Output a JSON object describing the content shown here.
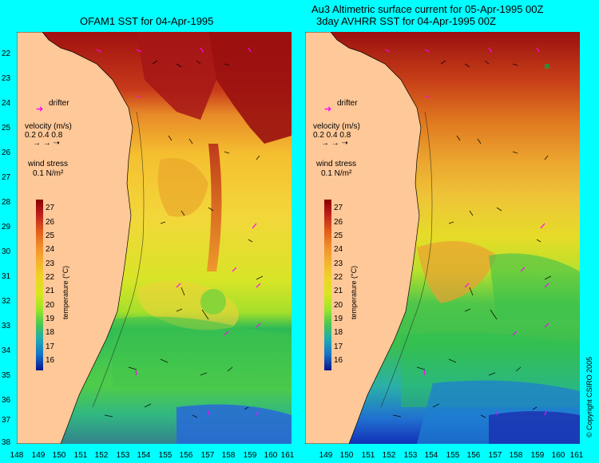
{
  "left_panel": {
    "title": "OFAM1 SST for 04-Apr-1995",
    "legend": {
      "drifter": "drifter",
      "velocity_label": "velocity (m/s)",
      "velocity_values": "0.2 0.4 0.8",
      "wind_label": "wind stress",
      "wind_value": "0.1 N/m²"
    }
  },
  "right_panel": {
    "title_line1": "Au3 Altimetric surface current for 05-Apr-1995 00Z",
    "title_line2": "3day AVHRR SST for 04-Apr-1995 00Z",
    "legend": {
      "drifter": "drifter",
      "velocity_label": "velocity (m/s)",
      "velocity_values": "0.2 0.4 0.8",
      "wind_label": "wind stress",
      "wind_value": "0.1 N/m²"
    }
  },
  "colorbar": {
    "title": "temperature (°C)",
    "ticks": [
      "27",
      "26",
      "25",
      "24",
      "23",
      "22",
      "21",
      "20",
      "19",
      "18",
      "17",
      "16"
    ]
  },
  "latitude_ticks": [
    "22",
    "23",
    "24",
    "25",
    "26",
    "27",
    "28",
    "29",
    "30",
    "31",
    "32",
    "33",
    "34",
    "35",
    "36",
    "37",
    "38"
  ],
  "left_longitude_ticks": [
    "148",
    "149",
    "150",
    "151",
    "152",
    "153",
    "154",
    "155",
    "156",
    "157",
    "158",
    "159",
    "160",
    "161"
  ],
  "right_longitude_ticks": [
    "149",
    "150",
    "151",
    "152",
    "153",
    "154",
    "155",
    "156",
    "157",
    "158",
    "159",
    "160",
    "161"
  ],
  "copyright": "© Copyright CSIRO 2005",
  "colors": {
    "background": "#00ffff",
    "land": "#ffc898",
    "drifter_arrow": "#ff00ff"
  }
}
